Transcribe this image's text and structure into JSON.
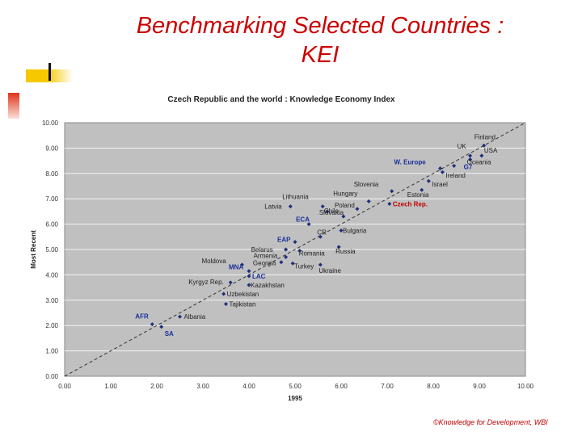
{
  "slide": {
    "title_line1": "Benchmarking Selected Countries :",
    "title_line2": "KEI",
    "footer": "©Knowledge for Development, WBI"
  },
  "chart_data": {
    "type": "scatter",
    "title": "Czech Republic and the world : Knowledge Economy Index",
    "xlabel": "1995",
    "ylabel": "Most Recent",
    "xlim": [
      0,
      10
    ],
    "ylim": [
      0,
      10
    ],
    "xticks": [
      "0.00",
      "1.00",
      "2.00",
      "3.00",
      "4.00",
      "5.00",
      "6.00",
      "7.00",
      "8.00",
      "9.00",
      "10.00"
    ],
    "yticks": [
      "0.00",
      "1.00",
      "2.00",
      "3.00",
      "4.00",
      "5.00",
      "6.00",
      "7.00",
      "8.00",
      "9.00",
      "10.00"
    ],
    "reference_line": "y = x",
    "points": [
      {
        "label": "Finland",
        "x": 9.1,
        "y": 9.1,
        "group": "country"
      },
      {
        "label": "UK",
        "x": 8.8,
        "y": 8.7,
        "group": "country"
      },
      {
        "label": "USA",
        "x": 9.05,
        "y": 8.7,
        "group": "country"
      },
      {
        "label": "Oceania",
        "x": 8.8,
        "y": 8.55,
        "group": "country"
      },
      {
        "label": "G7",
        "x": 8.45,
        "y": 8.3,
        "group": "region"
      },
      {
        "label": "W. Europe",
        "x": 8.15,
        "y": 8.2,
        "group": "region"
      },
      {
        "label": "Ireland",
        "x": 8.2,
        "y": 8.05,
        "group": "country"
      },
      {
        "label": "Israel",
        "x": 7.9,
        "y": 7.7,
        "group": "country"
      },
      {
        "label": "Slovenia",
        "x": 7.1,
        "y": 7.3,
        "group": "country"
      },
      {
        "label": "Estonia",
        "x": 7.75,
        "y": 7.35,
        "group": "country"
      },
      {
        "label": "Czech Rep.",
        "x": 7.05,
        "y": 6.8,
        "group": "highlight"
      },
      {
        "label": "Hungary",
        "x": 6.6,
        "y": 6.9,
        "group": "country"
      },
      {
        "label": "Lithuania",
        "x": 5.6,
        "y": 6.7,
        "group": "country"
      },
      {
        "label": "Poland",
        "x": 6.35,
        "y": 6.6,
        "group": "country"
      },
      {
        "label": "Latvia",
        "x": 4.9,
        "y": 6.7,
        "group": "country"
      },
      {
        "label": "Chile",
        "x": 5.7,
        "y": 6.5,
        "group": "country"
      },
      {
        "label": "Slovakia",
        "x": 6.05,
        "y": 6.3,
        "group": "country"
      },
      {
        "label": "ECA",
        "x": 5.3,
        "y": 6.0,
        "group": "region"
      },
      {
        "label": "Bulgaria",
        "x": 6.0,
        "y": 5.75,
        "group": "country"
      },
      {
        "label": "EAP",
        "x": 5.0,
        "y": 5.3,
        "group": "region"
      },
      {
        "label": "CR",
        "x": 5.55,
        "y": 5.5,
        "group": "country"
      },
      {
        "label": "Belarus",
        "x": 4.8,
        "y": 5.0,
        "group": "country"
      },
      {
        "label": "Russia",
        "x": 5.95,
        "y": 5.1,
        "group": "country"
      },
      {
        "label": "Armenia",
        "x": 4.8,
        "y": 4.7,
        "group": "country"
      },
      {
        "label": "Romania",
        "x": 5.1,
        "y": 4.95,
        "group": "country"
      },
      {
        "label": "Georgia",
        "x": 4.7,
        "y": 4.5,
        "group": "country"
      },
      {
        "label": "Turkey",
        "x": 4.95,
        "y": 4.45,
        "group": "country"
      },
      {
        "label": "Ukraine",
        "x": 5.55,
        "y": 4.4,
        "group": "country"
      },
      {
        "label": "Moldova",
        "x": 3.85,
        "y": 4.4,
        "group": "country"
      },
      {
        "label": "MNA",
        "x": 4.0,
        "y": 4.15,
        "group": "region"
      },
      {
        "label": "LAC",
        "x": 4.0,
        "y": 3.95,
        "group": "region"
      },
      {
        "label": "Kyrgyz Rep.",
        "x": 3.6,
        "y": 3.7,
        "group": "country"
      },
      {
        "label": "Kazakhstan",
        "x": 4.0,
        "y": 3.6,
        "group": "country"
      },
      {
        "label": "Uzbekistan",
        "x": 3.45,
        "y": 3.25,
        "group": "country"
      },
      {
        "label": "Tajikistan",
        "x": 3.5,
        "y": 2.85,
        "group": "country"
      },
      {
        "label": "Albania",
        "x": 2.5,
        "y": 2.35,
        "group": "country"
      },
      {
        "label": "AFR",
        "x": 1.9,
        "y": 2.05,
        "group": "region"
      },
      {
        "label": "SA",
        "x": 2.1,
        "y": 1.95,
        "group": "region"
      }
    ]
  }
}
